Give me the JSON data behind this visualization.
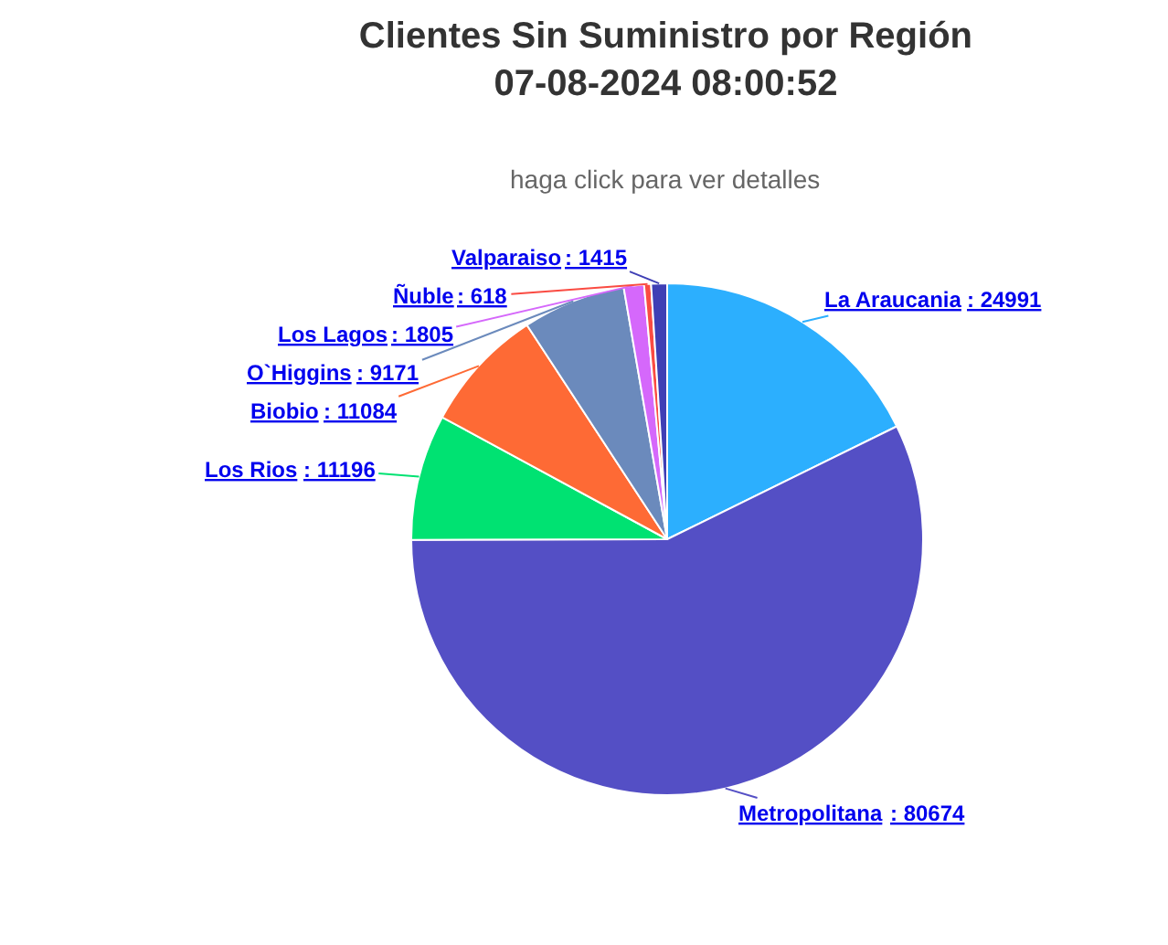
{
  "chart_data": {
    "type": "pie",
    "title": "Clientes Sin Suministro por Región\n07-08-2024 08:00:52",
    "subtitle": "haga click para ver detalles",
    "categories": [
      "La Araucania",
      "Metropolitana",
      "Los Rios",
      "Biobio",
      "O`Higgins",
      "Los Lagos",
      "Ñuble",
      "Valparaiso"
    ],
    "values": [
      24991,
      80674,
      11196,
      11084,
      9171,
      1805,
      618,
      1415
    ],
    "colors": [
      "#2caffe",
      "#544fc5",
      "#00e272",
      "#fe6a35",
      "#6b8abc",
      "#d568fb",
      "#fa4b42",
      "#3f3fb5"
    ],
    "value_labels": [
      ": 24991",
      ": 80674",
      ": 11196",
      ": 11084",
      ": 9171",
      ": 1805",
      ": 618",
      ": 1415"
    ],
    "legend": false
  }
}
